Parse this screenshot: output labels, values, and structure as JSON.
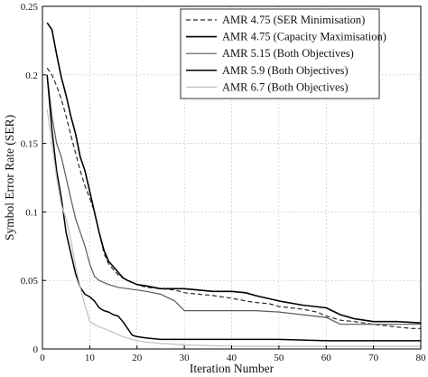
{
  "chart_data": {
    "type": "line",
    "title": "",
    "xlabel": "Iteration Number",
    "ylabel": "Symbol Error Rate (SER)",
    "xlim": [
      0,
      80
    ],
    "ylim": [
      0,
      0.25
    ],
    "xticks": [
      "0",
      "10",
      "20",
      "30",
      "40",
      "50",
      "60",
      "70",
      "80"
    ],
    "yticks": [
      "0",
      "0.05",
      "0.1",
      "0.15",
      "0.2",
      "0.25"
    ],
    "grid": true,
    "legend_position": "top-right",
    "series": [
      {
        "name": "AMR 4.75 (SER Minimisation)",
        "color": "#2a2a2a",
        "dash": "dashed",
        "x": [
          1,
          2,
          3,
          4,
          5,
          6,
          7,
          8,
          9,
          10,
          11,
          12,
          13,
          14,
          15,
          16,
          18,
          20,
          22,
          25,
          28,
          30,
          33,
          36,
          40,
          43,
          45,
          48,
          50,
          55,
          58,
          60,
          63,
          66,
          70,
          75,
          78,
          80
        ],
        "y": [
          0.205,
          0.2,
          0.192,
          0.182,
          0.17,
          0.156,
          0.143,
          0.13,
          0.119,
          0.11,
          0.1,
          0.085,
          0.07,
          0.062,
          0.058,
          0.054,
          0.05,
          0.047,
          0.045,
          0.044,
          0.043,
          0.041,
          0.04,
          0.039,
          0.037,
          0.035,
          0.034,
          0.033,
          0.031,
          0.029,
          0.027,
          0.024,
          0.021,
          0.02,
          0.018,
          0.016,
          0.015,
          0.015
        ]
      },
      {
        "name": "AMR 4.75 (Capacity Maximisation)",
        "color": "#000000",
        "dash": "solid",
        "x": [
          1,
          2,
          3,
          4,
          5,
          6,
          7,
          8,
          9,
          10,
          11,
          12,
          13,
          14,
          15,
          16,
          17,
          18,
          20,
          22,
          25,
          28,
          30,
          33,
          36,
          40,
          43,
          45,
          50,
          55,
          60,
          63,
          66,
          70,
          75,
          80
        ],
        "y": [
          0.238,
          0.233,
          0.215,
          0.198,
          0.185,
          0.17,
          0.157,
          0.14,
          0.13,
          0.115,
          0.1,
          0.085,
          0.072,
          0.064,
          0.06,
          0.056,
          0.052,
          0.05,
          0.047,
          0.046,
          0.044,
          0.044,
          0.044,
          0.043,
          0.042,
          0.042,
          0.041,
          0.039,
          0.035,
          0.032,
          0.03,
          0.025,
          0.022,
          0.02,
          0.02,
          0.019
        ]
      },
      {
        "name": "AMR 5.15 (Both Objectives)",
        "color": "#5a5a5a",
        "dash": "solid",
        "x": [
          1,
          2,
          3,
          4,
          5,
          6,
          7,
          8,
          9,
          10,
          11,
          12,
          14,
          16,
          18,
          20,
          22,
          25,
          28,
          30,
          35,
          40,
          45,
          50,
          55,
          60,
          63,
          65,
          70,
          75,
          80
        ],
        "y": [
          0.2,
          0.17,
          0.15,
          0.14,
          0.125,
          0.11,
          0.095,
          0.085,
          0.075,
          0.062,
          0.053,
          0.05,
          0.047,
          0.045,
          0.044,
          0.043,
          0.042,
          0.04,
          0.035,
          0.028,
          0.028,
          0.028,
          0.028,
          0.027,
          0.025,
          0.023,
          0.018,
          0.018,
          0.018,
          0.018,
          0.018
        ]
      },
      {
        "name": "AMR 5.9 (Both Objectives)",
        "color": "#000000",
        "dash": "solid",
        "x": [
          1,
          2,
          3,
          4,
          5,
          6,
          7,
          8,
          9,
          10,
          11,
          12,
          13,
          14,
          15,
          16,
          17,
          18,
          19,
          20,
          22,
          25,
          28,
          30,
          40,
          50,
          60,
          70,
          80
        ],
        "y": [
          0.2,
          0.16,
          0.13,
          0.11,
          0.085,
          0.07,
          0.055,
          0.045,
          0.04,
          0.038,
          0.035,
          0.03,
          0.028,
          0.027,
          0.025,
          0.024,
          0.02,
          0.015,
          0.01,
          0.009,
          0.008,
          0.007,
          0.007,
          0.007,
          0.007,
          0.007,
          0.006,
          0.006,
          0.006
        ]
      },
      {
        "name": "AMR 6.7 (Both Objectives)",
        "color": "#c0c0c0",
        "dash": "solid",
        "x": [
          1,
          2,
          3,
          4,
          5,
          6,
          7,
          8,
          9,
          10,
          11,
          12,
          13,
          15,
          17,
          20,
          22,
          25,
          30,
          40,
          50,
          60,
          70,
          80
        ],
        "y": [
          0.175,
          0.15,
          0.125,
          0.105,
          0.095,
          0.08,
          0.06,
          0.045,
          0.032,
          0.02,
          0.018,
          0.016,
          0.015,
          0.012,
          0.009,
          0.006,
          0.005,
          0.004,
          0.003,
          0.002,
          0.002,
          0.002,
          0.002,
          0.002
        ]
      }
    ]
  }
}
